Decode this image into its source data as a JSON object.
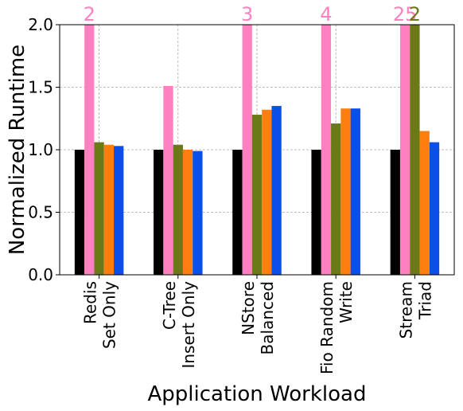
{
  "chart_data": {
    "type": "bar",
    "xlabel": "Application Workload",
    "ylabel": "Normalized Runtime",
    "categories": [
      [
        "Redis",
        "Set Only"
      ],
      [
        "C-Tree",
        "Insert Only"
      ],
      [
        "NStore",
        "Balanced"
      ],
      [
        "Fio Random",
        "Write"
      ],
      [
        "Stream",
        "Triad"
      ]
    ],
    "series": [
      {
        "color": "#000000",
        "values": [
          1,
          1,
          1,
          1,
          1
        ]
      },
      {
        "color": "#ff80c0",
        "values": [
          2,
          1.51,
          3,
          4,
          25
        ],
        "value_labels": [
          "2",
          null,
          "3",
          "4",
          "25"
        ]
      },
      {
        "color": "#6b7a16",
        "values": [
          1.06,
          1.04,
          1.28,
          1.21,
          2
        ],
        "value_labels": [
          null,
          null,
          null,
          null,
          "2"
        ]
      },
      {
        "color": "#ff7f0e",
        "values": [
          1.04,
          1.0,
          1.32,
          1.33,
          1.15
        ]
      },
      {
        "color": "#0c4fe6",
        "values": [
          1.03,
          0.99,
          1.35,
          1.33,
          1.06
        ]
      }
    ],
    "ylim": [
      0,
      2
    ],
    "yticks": [
      {
        "value": 0,
        "label": "0.0"
      },
      {
        "value": 0.5,
        "label": "0.5"
      },
      {
        "value": 1,
        "label": "1.0"
      },
      {
        "value": 1.5,
        "label": "1.5"
      },
      {
        "value": 2,
        "label": "2.0"
      }
    ],
    "grid": true
  }
}
